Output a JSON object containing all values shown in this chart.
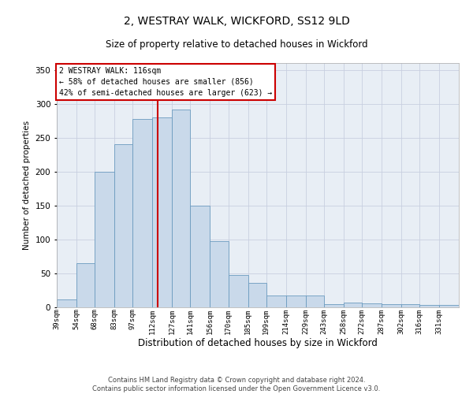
{
  "title1": "2, WESTRAY WALK, WICKFORD, SS12 9LD",
  "title2": "Size of property relative to detached houses in Wickford",
  "xlabel": "Distribution of detached houses by size in Wickford",
  "ylabel": "Number of detached properties",
  "footer1": "Contains HM Land Registry data © Crown copyright and database right 2024.",
  "footer2": "Contains public sector information licensed under the Open Government Licence v3.0.",
  "annotation_line1": "2 WESTRAY WALK: 116sqm",
  "annotation_line2": "← 58% of detached houses are smaller (856)",
  "annotation_line3": "42% of semi-detached houses are larger (623) →",
  "property_size": 116,
  "bar_color": "#c9d9ea",
  "bar_edge_color": "#6b9bbf",
  "vline_color": "#cc0000",
  "vline_x": 116,
  "categories": [
    "39sqm",
    "54sqm",
    "68sqm",
    "83sqm",
    "97sqm",
    "112sqm",
    "127sqm",
    "141sqm",
    "156sqm",
    "170sqm",
    "185sqm",
    "199sqm",
    "214sqm",
    "229sqm",
    "243sqm",
    "258sqm",
    "272sqm",
    "287sqm",
    "302sqm",
    "316sqm",
    "331sqm"
  ],
  "bin_edges": [
    39,
    54,
    68,
    83,
    97,
    112,
    127,
    141,
    156,
    170,
    185,
    199,
    214,
    229,
    243,
    258,
    272,
    287,
    302,
    316,
    331,
    346
  ],
  "values": [
    12,
    65,
    200,
    240,
    278,
    280,
    292,
    150,
    97,
    48,
    36,
    17,
    17,
    18,
    5,
    7,
    6,
    5,
    5,
    3,
    3
  ],
  "ylim": [
    0,
    360
  ],
  "yticks": [
    0,
    50,
    100,
    150,
    200,
    250,
    300,
    350
  ],
  "background_color": "#ffffff",
  "grid_color": "#c8cfe0",
  "axes_bg_color": "#e8eef5",
  "annotation_box_color": "#ffffff",
  "annotation_box_edge": "#cc0000",
  "title1_fontsize": 10,
  "title2_fontsize": 8.5,
  "xlabel_fontsize": 8.5,
  "ylabel_fontsize": 7.5,
  "tick_fontsize": 6.5,
  "ytick_fontsize": 7.5,
  "footer_fontsize": 6,
  "annotation_fontsize": 7
}
